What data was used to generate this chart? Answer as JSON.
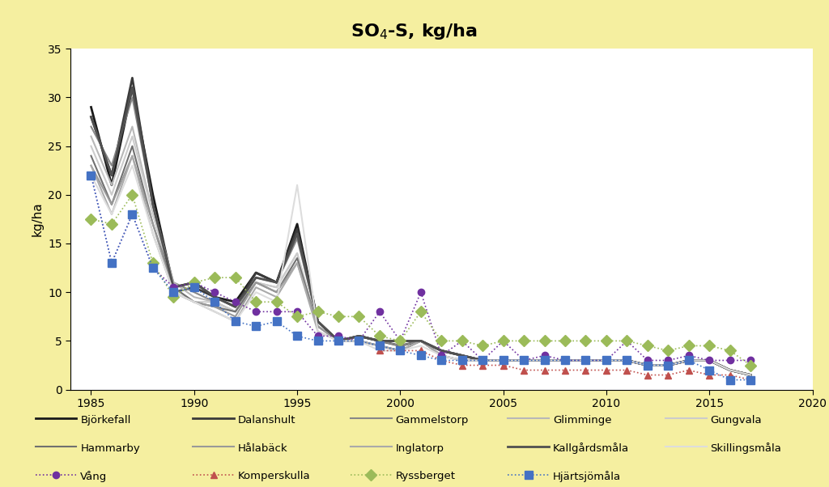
{
  "title": "SO₄-S, kg/ha",
  "ylabel": "kg/ha",
  "xlim": [
    1984,
    2020
  ],
  "ylim": [
    0,
    35
  ],
  "yticks": [
    0,
    5,
    10,
    15,
    20,
    25,
    30,
    35
  ],
  "xticks": [
    1985,
    1990,
    1995,
    2000,
    2005,
    2010,
    2015,
    2020
  ],
  "background_fig": "#F5EFA0",
  "background_ax": "#FFFFFF",
  "gray_series": {
    "Björkefall": {
      "color": "#1a1a1a",
      "lw": 2.0,
      "years": [
        1985,
        1986,
        1987,
        1988,
        1989,
        1990,
        1991,
        1992,
        1993,
        1994,
        1995,
        1996,
        1997,
        1998,
        1999,
        2000,
        2001,
        2002,
        2003,
        2004,
        2005,
        2006,
        2007,
        2008,
        2009,
        2010,
        2011,
        2012,
        2013,
        2014,
        2015,
        2016,
        2017
      ],
      "values": [
        29,
        21,
        31,
        20,
        10.5,
        11,
        9.5,
        9,
        12,
        11,
        17,
        7,
        5,
        5.5,
        5,
        5,
        5,
        4,
        3.5,
        3,
        3,
        3,
        3,
        3,
        3,
        3,
        3,
        2.5,
        2.5,
        3,
        3,
        2,
        1.5
      ]
    },
    "Dalanshult": {
      "color": "#3a3a3a",
      "lw": 2.0,
      "years": [
        1985,
        1986,
        1987,
        1988,
        1989,
        1990,
        1991,
        1992,
        1993,
        1994,
        1995,
        1996,
        1997,
        1998,
        1999,
        2000,
        2001,
        2002,
        2003,
        2004,
        2005,
        2006,
        2007,
        2008,
        2009,
        2010,
        2011,
        2012,
        2013,
        2014,
        2015,
        2016,
        2017
      ],
      "values": [
        28,
        22,
        32,
        19,
        10,
        10.5,
        9.5,
        8.5,
        12,
        11,
        16.5,
        7,
        5,
        5.5,
        5,
        4.5,
        5,
        4,
        3.5,
        3,
        3,
        3,
        3,
        3,
        3,
        3,
        3,
        2.5,
        2.5,
        3,
        3,
        2,
        1.5
      ]
    },
    "Gammelstorp": {
      "color": "#888888",
      "lw": 1.5,
      "years": [
        1985,
        1986,
        1987,
        1988,
        1989,
        1990,
        1991,
        1992,
        1993,
        1994,
        1995,
        1996,
        1997,
        1998,
        1999,
        2000,
        2001,
        2002,
        2003,
        2004,
        2005,
        2006,
        2007,
        2008,
        2009,
        2010,
        2011,
        2012,
        2013,
        2014,
        2015,
        2016,
        2017
      ],
      "values": [
        27,
        23,
        30,
        19,
        11,
        10,
        9,
        8,
        11.5,
        11,
        15.5,
        7,
        5,
        5.5,
        5,
        4.5,
        5,
        4,
        3.5,
        3,
        3,
        3,
        3,
        3,
        3,
        3,
        3,
        2.5,
        2.5,
        3,
        3,
        2,
        1.5
      ]
    },
    "Glimminge": {
      "color": "#b8b8b8",
      "lw": 1.5,
      "years": [
        1985,
        1986,
        1987,
        1988,
        1989,
        1990,
        1991,
        1992,
        1993,
        1994,
        1995,
        1996,
        1997,
        1998,
        1999,
        2000,
        2001,
        2002,
        2003,
        2004,
        2005,
        2006,
        2007,
        2008,
        2009,
        2010,
        2011,
        2012,
        2013,
        2014,
        2015,
        2016,
        2017
      ],
      "values": [
        26,
        21,
        27,
        18,
        11,
        9.5,
        9,
        8,
        11,
        10.5,
        14,
        6.5,
        5,
        5,
        4.5,
        4,
        5,
        3.5,
        3,
        3,
        3,
        3,
        3,
        3,
        3,
        3,
        3,
        2.5,
        2.5,
        3,
        3,
        2,
        1.5
      ]
    },
    "Gungvala": {
      "color": "#cccccc",
      "lw": 1.5,
      "years": [
        1985,
        1986,
        1987,
        1988,
        1989,
        1990,
        1991,
        1992,
        1993,
        1994,
        1995,
        1996,
        1997,
        1998,
        1999,
        2000,
        2001,
        2002,
        2003,
        2004,
        2005,
        2006,
        2007,
        2008,
        2009,
        2010,
        2011,
        2012,
        2013,
        2014,
        2015,
        2016,
        2017
      ],
      "values": [
        25,
        20,
        26,
        18,
        10.5,
        9,
        9,
        8,
        11,
        10.5,
        14,
        6.5,
        5,
        5,
        4.5,
        4,
        5,
        3.5,
        3,
        3,
        3,
        3,
        3,
        3,
        3,
        3,
        3,
        2.5,
        2.5,
        3,
        3,
        2,
        1.5
      ]
    },
    "Hammarby": {
      "color": "#707070",
      "lw": 1.5,
      "years": [
        1985,
        1986,
        1987,
        1988,
        1989,
        1990,
        1991,
        1992,
        1993,
        1994,
        1995,
        1996,
        1997,
        1998,
        1999,
        2000,
        2001,
        2002,
        2003,
        2004,
        2005,
        2006,
        2007,
        2008,
        2009,
        2010,
        2011,
        2012,
        2013,
        2014,
        2015,
        2016,
        2017
      ],
      "values": [
        24,
        19,
        25,
        17,
        10.5,
        9,
        8.5,
        8,
        11,
        10,
        13.5,
        6.5,
        5,
        5,
        4.5,
        4,
        5,
        3.5,
        3,
        3,
        3,
        3,
        3,
        3,
        3,
        3,
        3,
        2.5,
        2.5,
        3,
        3,
        2,
        1.5
      ]
    },
    "Hålabäck": {
      "color": "#999999",
      "lw": 1.5,
      "years": [
        1985,
        1986,
        1987,
        1988,
        1989,
        1990,
        1991,
        1992,
        1993,
        1994,
        1995,
        1996,
        1997,
        1998,
        1999,
        2000,
        2001,
        2002,
        2003,
        2004,
        2005,
        2006,
        2007,
        2008,
        2009,
        2010,
        2011,
        2012,
        2013,
        2014,
        2015,
        2016,
        2017
      ],
      "values": [
        23,
        19,
        24,
        17,
        10,
        9,
        8.5,
        7.5,
        11,
        10,
        13,
        6.5,
        5,
        5,
        4.5,
        4,
        5,
        3.5,
        3,
        3,
        3,
        3,
        3,
        3,
        3,
        3,
        3,
        2.5,
        2.5,
        3,
        3,
        2,
        1.5
      ]
    },
    "Inglatorp": {
      "color": "#aaaaaa",
      "lw": 1.5,
      "years": [
        1985,
        1986,
        1987,
        1988,
        1989,
        1990,
        1991,
        1992,
        1993,
        1994,
        1995,
        1996,
        1997,
        1998,
        1999,
        2000,
        2001,
        2002,
        2003,
        2004,
        2005,
        2006,
        2007,
        2008,
        2009,
        2010,
        2011,
        2012,
        2013,
        2014,
        2015,
        2016,
        2017
      ],
      "values": [
        23,
        18,
        24,
        16,
        10,
        9,
        8,
        7,
        10.5,
        9.5,
        13,
        6,
        5,
        5,
        4.5,
        4,
        5,
        3.5,
        3,
        3,
        3,
        3,
        3,
        3,
        3,
        3,
        3,
        2.5,
        2.5,
        3,
        3,
        2,
        1.5
      ]
    },
    "Kallgårdsmåla": {
      "color": "#505050",
      "lw": 2.0,
      "years": [
        1985,
        1986,
        1987,
        1988,
        1989,
        1990,
        1991,
        1992,
        1993,
        1994,
        1995,
        1996,
        1997,
        1998,
        1999,
        2000,
        2001,
        2002,
        2003,
        2004,
        2005,
        2006,
        2007,
        2008,
        2009,
        2010,
        2011,
        2012,
        2013,
        2014,
        2015,
        2016,
        2017
      ],
      "values": [
        28,
        22,
        31,
        19,
        10.5,
        11,
        9.5,
        8.5,
        11.5,
        11,
        16,
        7,
        5,
        5.5,
        5,
        5,
        5,
        4,
        3.5,
        3,
        3,
        3,
        3,
        3,
        3,
        3,
        3,
        2.5,
        2.5,
        3,
        3,
        2,
        1.5
      ]
    },
    "Skillingsmåla": {
      "color": "#dddddd",
      "lw": 1.5,
      "years": [
        1985,
        1986,
        1987,
        1988,
        1989,
        1990,
        1991,
        1992,
        1993,
        1994,
        1995,
        1996,
        1997,
        1998,
        1999,
        2000,
        2001,
        2002,
        2003,
        2004,
        2005,
        2006,
        2007,
        2008,
        2009,
        2010,
        2011,
        2012,
        2013,
        2014,
        2015,
        2016,
        2017
      ],
      "values": [
        22,
        18,
        23,
        16,
        10,
        9,
        8,
        7,
        10,
        9,
        21,
        6,
        5,
        5,
        4,
        4,
        4.5,
        3.5,
        3,
        3,
        3,
        3,
        3,
        3,
        3,
        3,
        3,
        2.5,
        2.5,
        3,
        3,
        2,
        1.5
      ]
    }
  },
  "dotted_series": {
    "Vång": {
      "color": "#7030a0",
      "marker": "o",
      "ms": 6,
      "years": [
        1985,
        1986,
        1987,
        1988,
        1989,
        1990,
        1991,
        1992,
        1993,
        1994,
        1995,
        1996,
        1997,
        1998,
        1999,
        2000,
        2001,
        2002,
        2003,
        2004,
        2005,
        2006,
        2007,
        2008,
        2009,
        2010,
        2011,
        2012,
        2013,
        2014,
        2015,
        2016,
        2017
      ],
      "values": [
        22,
        13,
        18,
        12.5,
        10.5,
        11,
        10,
        9,
        8,
        8,
        8,
        5.5,
        5.5,
        5,
        8,
        5,
        10,
        3.5,
        5,
        3,
        5,
        3,
        3.5,
        3,
        3,
        3,
        5,
        3,
        3,
        3.5,
        3,
        3,
        3
      ]
    },
    "Komperskulla": {
      "color": "#c0504d",
      "marker": "^",
      "ms": 6,
      "years": [
        1985,
        1986,
        1987,
        1988,
        1989,
        1990,
        1991,
        1992,
        1993,
        1994,
        1995,
        1996,
        1997,
        1998,
        1999,
        2000,
        2001,
        2002,
        2003,
        2004,
        2005,
        2006,
        2007,
        2008,
        2009,
        2010,
        2011,
        2012,
        2013,
        2014,
        2015,
        2016,
        2017
      ],
      "values": [
        null,
        null,
        null,
        null,
        null,
        null,
        null,
        null,
        null,
        null,
        null,
        null,
        null,
        null,
        4,
        4,
        4,
        3,
        2.5,
        2.5,
        2.5,
        2,
        2,
        2,
        2,
        2,
        2,
        1.5,
        1.5,
        2,
        1.5,
        1.5,
        1
      ]
    },
    "Ryssberget": {
      "color": "#9bbb59",
      "marker": "D",
      "ms": 7,
      "years": [
        1985,
        1986,
        1987,
        1988,
        1989,
        1990,
        1991,
        1992,
        1993,
        1994,
        1995,
        1996,
        1997,
        1998,
        1999,
        2000,
        2001,
        2002,
        2003,
        2004,
        2005,
        2006,
        2007,
        2008,
        2009,
        2010,
        2011,
        2012,
        2013,
        2014,
        2015,
        2016,
        2017
      ],
      "values": [
        17.5,
        17,
        20,
        13,
        9.5,
        11,
        11.5,
        11.5,
        9,
        9,
        7.5,
        8,
        7.5,
        7.5,
        5.5,
        5,
        8,
        5,
        5,
        4.5,
        5,
        5,
        5,
        5,
        5,
        5,
        5,
        4.5,
        4,
        4.5,
        4.5,
        4,
        2.5
      ]
    },
    "Hjärtsjömåla": {
      "color": "#4472c4",
      "marker": "s",
      "ms": 7,
      "years": [
        1985,
        1986,
        1987,
        1988,
        1989,
        1990,
        1991,
        1992,
        1993,
        1994,
        1995,
        1996,
        1997,
        1998,
        1999,
        2000,
        2001,
        2002,
        2003,
        2004,
        2005,
        2006,
        2007,
        2008,
        2009,
        2010,
        2011,
        2012,
        2013,
        2014,
        2015,
        2016,
        2017
      ],
      "values": [
        22,
        13,
        18,
        12.5,
        10,
        10.5,
        9,
        7,
        6.5,
        7,
        5.5,
        5,
        5,
        5,
        4.5,
        4,
        3.5,
        3,
        3,
        3,
        3,
        3,
        3,
        3,
        3,
        3,
        3,
        2.5,
        2.5,
        3,
        2,
        1,
        1
      ]
    }
  },
  "legend_gray_row1": [
    "Björkefall",
    "Dalanshult",
    "Gammelstorp",
    "Glimminge",
    "Gungvala"
  ],
  "legend_gray_row2": [
    "Hammarby",
    "Hålabäck",
    "Inglatorp",
    "Kallgårdsmåla",
    "Skillingsmåla"
  ],
  "legend_dot_row": [
    "Vång",
    "Komperskulla",
    "Ryssberget",
    "Hjärtsjömåla"
  ],
  "title_latex": "SO$_4$-S, kg/ha"
}
